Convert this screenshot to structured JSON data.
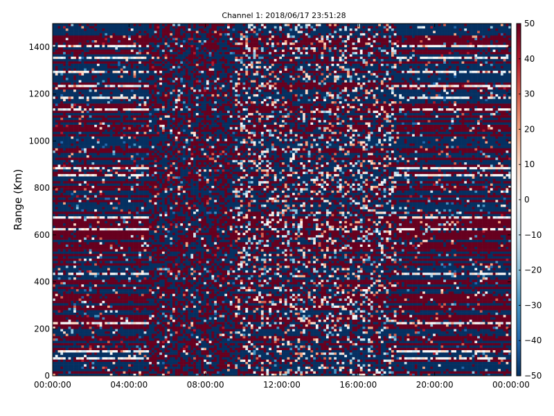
{
  "chart_data": {
    "type": "heatmap",
    "title": "Channel 1: 2018/06/17 23:51:28",
    "xlabel": "",
    "ylabel": "Range (Km)",
    "x_tick_labels": [
      "00:00:00",
      "04:00:00",
      "08:00:00",
      "12:00:00",
      "16:00:00",
      "20:00:00",
      "00:00:00"
    ],
    "x_range_hours": [
      0,
      24
    ],
    "y_ticks": [
      0,
      200,
      400,
      600,
      800,
      1000,
      1200,
      1400
    ],
    "ylim": [
      0,
      1500
    ],
    "colorbar": {
      "ticks": [
        50,
        40,
        30,
        20,
        10,
        0,
        -10,
        -20,
        -30,
        -40,
        -50
      ],
      "range": [
        -50,
        50
      ],
      "colormap": "RdBu_r",
      "colors": [
        "#053061",
        "#2166ac",
        "#4393c3",
        "#92c5de",
        "#d1e5f0",
        "#f7f7f7",
        "#fddbc7",
        "#f4a582",
        "#d6604d",
        "#b2182b",
        "#67001f"
      ]
    },
    "grid": false,
    "data_description_segments": [
      {
        "hours": [
          0,
          5
        ],
        "pattern": "horizontal bands alternating ~+50 and ~-50"
      },
      {
        "hours": [
          5,
          9.5
        ],
        "pattern": "noisy mixed, vertical texture"
      },
      {
        "hours": [
          9.5,
          18
        ],
        "pattern": "mixed bands, many white speckles"
      },
      {
        "hours": [
          18,
          24
        ],
        "pattern": "horizontal bands alternating ~+50 and ~-50"
      }
    ]
  }
}
